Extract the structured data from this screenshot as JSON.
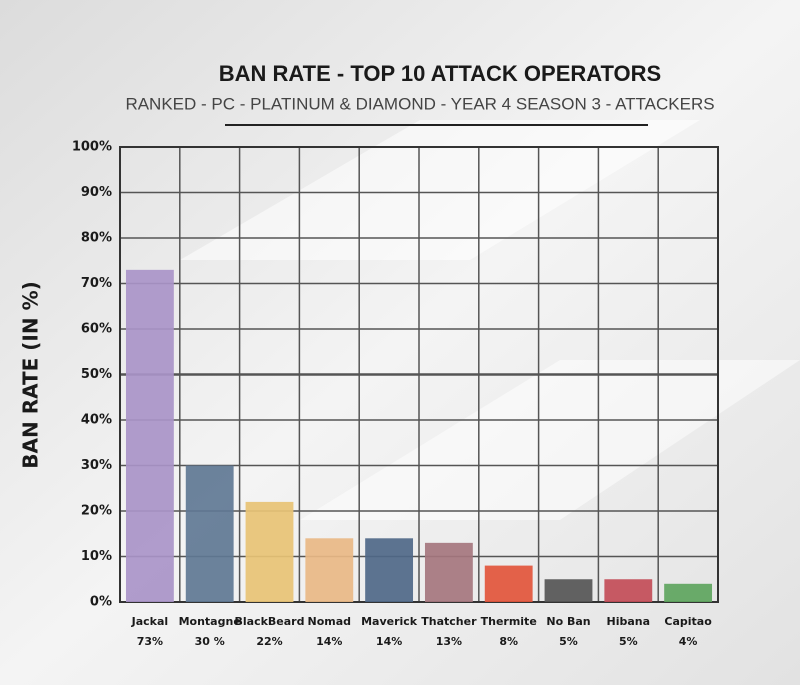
{
  "chart_data": {
    "type": "bar",
    "title": "BAN RATE - TOP 10 ATTACK OPERATORS",
    "subtitle": "RANKED - PC - PLATINUM & DIAMOND - YEAR 4 SEASON 3 - ATTACKERS",
    "y_label": "BAN RATE (IN %)",
    "categories": [
      "Jackal",
      "Montagne",
      "BlackBeard",
      "Nomad",
      "Maverick",
      "Thatcher",
      "Thermite",
      "No Ban",
      "Hibana",
      "Capitao"
    ],
    "values": [
      73,
      30,
      22,
      14,
      14,
      13,
      8,
      5,
      5,
      4
    ],
    "value_labels": [
      "73%",
      "30 %",
      "22%",
      "14%",
      "14%",
      "13%",
      "8%",
      "5%",
      "5%",
      "4%"
    ],
    "colors": [
      "#a994c8",
      "#5f7894",
      "#e8c375",
      "#e9b886",
      "#4f6888",
      "#a5767e",
      "#e2553b",
      "#555555",
      "#c24c57",
      "#5ea55e"
    ],
    "ylim": [
      0,
      100
    ],
    "yticks": [
      {
        "value": 0,
        "label": "0%"
      },
      {
        "value": 10,
        "label": "10%"
      },
      {
        "value": 20,
        "label": "20%"
      },
      {
        "value": 30,
        "label": "30%"
      },
      {
        "value": 40,
        "label": "40%"
      },
      {
        "value": 50,
        "label": "50%"
      },
      {
        "value": 60,
        "label": "60%"
      },
      {
        "value": 70,
        "label": "70%"
      },
      {
        "value": 80,
        "label": "80%"
      },
      {
        "value": 90,
        "label": "90%"
      },
      {
        "value": 100,
        "label": "100%"
      }
    ],
    "grid": true
  }
}
